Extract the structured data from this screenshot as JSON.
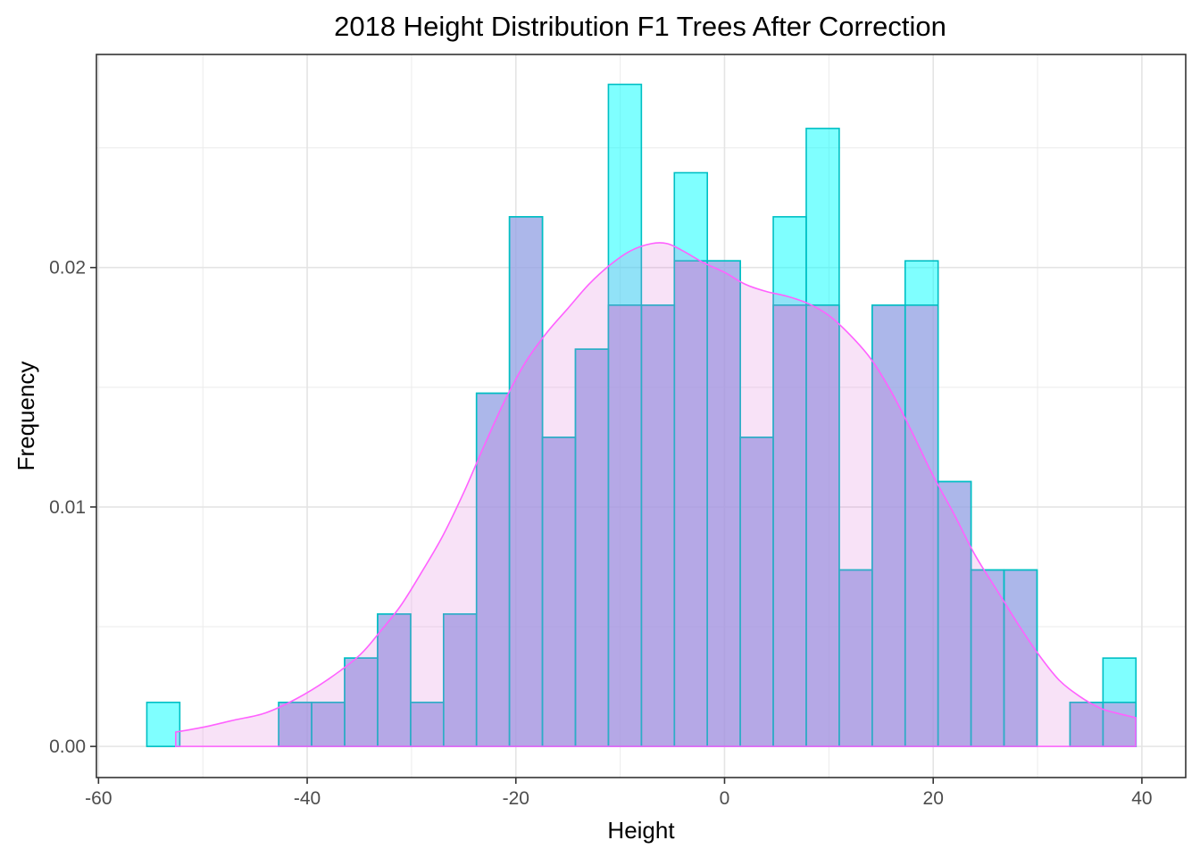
{
  "chart_data": {
    "type": "bar",
    "title": "2018 Height Distribution F1 Trees After Correction",
    "xlabel": "Height",
    "ylabel": "Frequency",
    "xlim": [
      -60.2,
      44.2
    ],
    "ylim": [
      -0.0013,
      0.0289
    ],
    "x_ticks": [
      -60,
      -40,
      -20,
      0,
      20,
      40
    ],
    "x_tick_labels": [
      "-60",
      "-40",
      "-20",
      "0",
      "20",
      "40"
    ],
    "y_ticks": [
      0.0,
      0.01,
      0.02
    ],
    "y_tick_labels": [
      "0.00",
      "0.01",
      "0.02"
    ],
    "grid": true,
    "bin_width": 3.16,
    "series": [
      {
        "name": "",
        "type": "histogram",
        "color": "#00FFFF",
        "edge_color": "#00BFC4",
        "bin_centers": [
          -53.79,
          -50.63,
          -47.47,
          -44.31,
          -41.15,
          -37.99,
          -34.83,
          -31.67,
          -28.51,
          -25.35,
          -22.19,
          -19.03,
          -15.87,
          -12.71,
          -9.55,
          -6.39,
          -3.23,
          -0.07,
          3.09,
          6.25,
          9.41,
          12.57,
          15.73,
          18.89,
          22.05,
          25.21,
          28.37,
          31.53,
          34.69,
          37.85
        ],
        "values": [
          0.00184,
          0,
          0,
          0,
          0.00184,
          0.00184,
          0.00369,
          0.00553,
          0.00184,
          0.00553,
          0.01475,
          0.02212,
          0.01291,
          0.01659,
          0.02765,
          0.01843,
          0.02396,
          0.02028,
          0.01291,
          0.02212,
          0.02581,
          0.00737,
          0.01843,
          0.02028,
          0.01106,
          0.00737,
          0.00737,
          0,
          0.00184,
          0.00369
        ]
      },
      {
        "name": "",
        "type": "histogram",
        "color": "#DA70D6",
        "edge_color": "#00BFC4",
        "bin_centers": [
          -53.79,
          -50.63,
          -47.47,
          -44.31,
          -41.15,
          -37.99,
          -34.83,
          -31.67,
          -28.51,
          -25.35,
          -22.19,
          -19.03,
          -15.87,
          -12.71,
          -9.55,
          -6.39,
          -3.23,
          -0.07,
          3.09,
          6.25,
          9.41,
          12.57,
          15.73,
          18.89,
          22.05,
          25.21,
          28.37,
          31.53,
          34.69,
          37.85
        ],
        "values": [
          0,
          0,
          0,
          0,
          0.00184,
          0.00184,
          0.00369,
          0.00553,
          0.00184,
          0.00553,
          0.01475,
          0.02212,
          0.01291,
          0.01659,
          0.01843,
          0.01843,
          0.02028,
          0.02028,
          0.01291,
          0.01843,
          0.01843,
          0.00737,
          0.01843,
          0.01843,
          0.01106,
          0.00737,
          0.00737,
          0,
          0.00184,
          0.00184
        ]
      },
      {
        "name": "",
        "type": "density",
        "color": "#FF61FF",
        "fill_color": "#DA70D6",
        "x": [
          -52.6,
          -50,
          -47,
          -44,
          -41,
          -38,
          -35,
          -33,
          -31,
          -29,
          -27,
          -25,
          -23,
          -21,
          -19,
          -17,
          -15,
          -13,
          -11,
          -9,
          -7,
          -5.5,
          -4,
          -2,
          0,
          2,
          4,
          6,
          8,
          10,
          12,
          14,
          16,
          18,
          20,
          22,
          24,
          26,
          28,
          30,
          32,
          34,
          36,
          37.5,
          39.4
        ],
        "values": [
          0.0006,
          0.0008,
          0.0011,
          0.0014,
          0.002,
          0.0028,
          0.0038,
          0.0048,
          0.0059,
          0.0073,
          0.0088,
          0.0106,
          0.0126,
          0.0145,
          0.0161,
          0.0173,
          0.0183,
          0.0193,
          0.0201,
          0.0207,
          0.021,
          0.021,
          0.0207,
          0.0202,
          0.0198,
          0.0193,
          0.019,
          0.0188,
          0.0185,
          0.018,
          0.0172,
          0.0162,
          0.0148,
          0.0131,
          0.0113,
          0.0097,
          0.008,
          0.0066,
          0.0052,
          0.0039,
          0.0028,
          0.0021,
          0.0016,
          0.0014,
          0.0012
        ]
      }
    ]
  }
}
